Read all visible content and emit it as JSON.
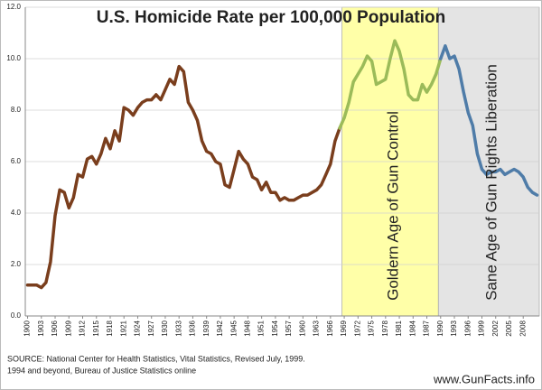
{
  "chart_data": {
    "type": "line",
    "title": "U.S. Homicide Rate per 100,000 Population",
    "title_color": "#c0602a",
    "xlim": [
      1899.5,
      2011.5
    ],
    "xticks": [
      1900,
      1903,
      1906,
      1909,
      1912,
      1915,
      1918,
      1921,
      1924,
      1927,
      1930,
      1933,
      1936,
      1939,
      1942,
      1945,
      1948,
      1951,
      1954,
      1957,
      1960,
      1963,
      1966,
      1969,
      1972,
      1975,
      1978,
      1981,
      1984,
      1987,
      1990,
      1993,
      1996,
      1999,
      2002,
      2005,
      2008
    ],
    "ylim": [
      0,
      12
    ],
    "yticks": [
      {
        "value": 0,
        "label": "0.0"
      },
      {
        "value": 2,
        "label": "2.0"
      },
      {
        "value": 4,
        "label": "4.0"
      },
      {
        "value": 6,
        "label": "6.0"
      },
      {
        "value": 8,
        "label": "8.0"
      },
      {
        "value": 10,
        "label": "10.0"
      },
      {
        "value": 12,
        "label": "12.0"
      }
    ],
    "grid": true,
    "spans": [
      {
        "from": 1968.5,
        "to": 1989.5,
        "color": "#ffffa8",
        "label": "Goldern Age of Gun Control"
      },
      {
        "from": 1989.5,
        "to": 2011.5,
        "color": "#e4e4e4",
        "label": "Sane Age of Gun Rights Liberation"
      }
    ],
    "series": [
      {
        "color": "#7a3e1d",
        "x": [
          1900,
          1901,
          1902,
          1903,
          1904,
          1905,
          1906,
          1907,
          1908,
          1909,
          1910,
          1911,
          1912,
          1913,
          1914,
          1915,
          1916,
          1917,
          1918,
          1919,
          1920,
          1921,
          1922,
          1923,
          1924,
          1925,
          1926,
          1927,
          1928,
          1929,
          1930,
          1931,
          1932,
          1933,
          1934,
          1935,
          1936,
          1937,
          1938,
          1939,
          1940,
          1941,
          1942,
          1943,
          1944,
          1945,
          1946,
          1947,
          1948,
          1949,
          1950,
          1951,
          1952,
          1953,
          1954,
          1955,
          1956,
          1957,
          1958,
          1959,
          1960,
          1961,
          1962,
          1963,
          1964,
          1965,
          1966,
          1967,
          1968
        ],
        "values": [
          1.2,
          1.2,
          1.2,
          1.1,
          1.3,
          2.1,
          3.9,
          4.9,
          4.8,
          4.2,
          4.6,
          5.5,
          5.4,
          6.1,
          6.2,
          5.9,
          6.3,
          6.9,
          6.5,
          7.2,
          6.8,
          8.1,
          8.0,
          7.8,
          8.1,
          8.3,
          8.4,
          8.4,
          8.6,
          8.4,
          8.8,
          9.2,
          9.0,
          9.7,
          9.5,
          8.3,
          8.0,
          7.6,
          6.8,
          6.4,
          6.3,
          6.0,
          5.9,
          5.1,
          5.0,
          5.7,
          6.4,
          6.1,
          5.9,
          5.4,
          5.3,
          4.9,
          5.2,
          4.8,
          4.8,
          4.5,
          4.6,
          4.5,
          4.5,
          4.6,
          4.7,
          4.7,
          4.8,
          4.9,
          5.1,
          5.5,
          5.9,
          6.8,
          7.3
        ]
      },
      {
        "color": "#9bbb59",
        "x": [
          1968,
          1969,
          1970,
          1971,
          1972,
          1973,
          1974,
          1975,
          1976,
          1977,
          1978,
          1979,
          1980,
          1981,
          1982,
          1983,
          1984,
          1985,
          1986,
          1987,
          1988,
          1989,
          1990
        ],
        "values": [
          7.3,
          7.7,
          8.3,
          9.1,
          9.4,
          9.7,
          10.1,
          9.9,
          9.0,
          9.1,
          9.2,
          10.0,
          10.7,
          10.3,
          9.6,
          8.6,
          8.4,
          8.4,
          9.0,
          8.7,
          9.0,
          9.4,
          10.0
        ]
      },
      {
        "color": "#4f7ca8",
        "x": [
          1990,
          1991,
          1992,
          1993,
          1994,
          1995,
          1996,
          1997,
          1998,
          1999,
          2000,
          2001,
          2002,
          2003,
          2004,
          2005,
          2006,
          2007,
          2008,
          2009,
          2010,
          2011
        ],
        "values": [
          10.0,
          10.5,
          10.0,
          10.1,
          9.6,
          8.7,
          7.9,
          7.4,
          6.3,
          5.7,
          5.5,
          5.6,
          5.6,
          5.7,
          5.5,
          5.6,
          5.7,
          5.6,
          5.4,
          5.0,
          4.8,
          4.7
        ]
      }
    ],
    "source": [
      "SOURCE:  National Center for Health Statistics, Vital Statistics, Revised July, 1999.",
      "1994 and beyond, Bureau of Justice Statistics online"
    ],
    "website": "www.GunFacts.info"
  }
}
